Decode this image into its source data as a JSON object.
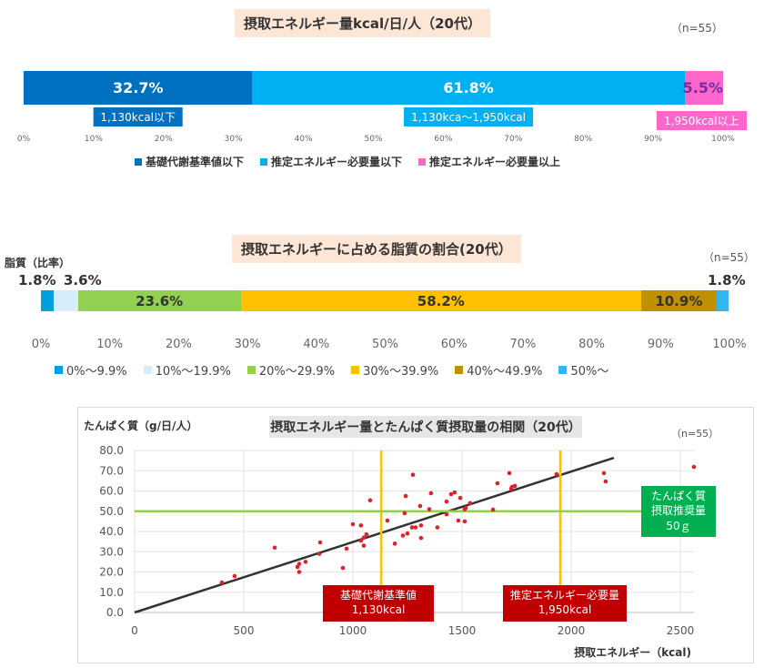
{
  "chart_data": [
    {
      "type": "bar",
      "stacked": "horizontal-100",
      "title": "摂取エネルギー量kcal/日/人（20代）",
      "n_label": "（n=55）",
      "series": [
        {
          "name": "基礎代謝基準値以下",
          "value": 32.7,
          "label": "32.7%",
          "range_label": "1,130kcal以下",
          "color": "#0070c0"
        },
        {
          "name": "推定エネルギー必要量以下",
          "value": 61.8,
          "label": "61.8%",
          "range_label": "1,130kca～1,950kcal",
          "color": "#00b0f0"
        },
        {
          "name": "推定エネルギー必要量以上",
          "value": 5.5,
          "label": "5.5%",
          "range_label": "1,950kcal以上",
          "color": "#ff66cc"
        }
      ],
      "xticks": [
        "0%",
        "10%",
        "20%",
        "30%",
        "40%",
        "50%",
        "60%",
        "70%",
        "80%",
        "90%",
        "100%"
      ],
      "xlim": [
        0,
        100
      ]
    },
    {
      "type": "bar",
      "stacked": "horizontal-100",
      "title": "摂取エネルギーに占める脂質の割合(20代）",
      "n_label": "（n=55）",
      "ylabel": "脂質（比率）",
      "series": [
        {
          "name": "0%～9.9%",
          "value": 1.8,
          "label": "1.8%",
          "color": "#00a0e0"
        },
        {
          "name": "10%～19.9%",
          "value": 3.6,
          "label": "3.6%",
          "color": "#d6eefc"
        },
        {
          "name": "20%～29.9%",
          "value": 23.6,
          "label": "23.6%",
          "color": "#92d050"
        },
        {
          "name": "30%～39.9%",
          "value": 58.2,
          "label": "58.2%",
          "color": "#ffc000"
        },
        {
          "name": "40%～49.9%",
          "value": 10.9,
          "label": "10.9%",
          "color": "#bf9000"
        },
        {
          "name": "50%～",
          "value": 1.8,
          "label": "1.8%",
          "color": "#33b5f0"
        }
      ],
      "xticks": [
        "0%",
        "10%",
        "20%",
        "30%",
        "40%",
        "50%",
        "60%",
        "70%",
        "80%",
        "90%",
        "100%"
      ],
      "xlim": [
        0,
        100
      ]
    },
    {
      "type": "scatter",
      "title": "摂取エネルギー量とたんぱく質摂取量の相関（20代）",
      "n_label": "（n=55）",
      "xlabel": "摂取エネルギー（kcal)",
      "ylabel": "たんぱく質（g/日/人）",
      "xlim": [
        0,
        2500
      ],
      "ylim": [
        0,
        80
      ],
      "xticks": [
        "0",
        "500",
        "1000",
        "1500",
        "2000",
        "2500"
      ],
      "yticks": [
        "0.0",
        "10.0",
        "20.0",
        "30.0",
        "40.0",
        "50.0",
        "60.0",
        "70.0",
        "80.0"
      ],
      "point_color": "#e0202a",
      "grid": true,
      "points": [
        [
          400,
          14.8
        ],
        [
          458,
          18
        ],
        [
          642,
          32
        ],
        [
          746,
          22.5
        ],
        [
          754,
          24
        ],
        [
          754,
          20
        ],
        [
          783,
          25
        ],
        [
          850,
          34.6
        ],
        [
          846,
          29
        ],
        [
          954,
          22
        ],
        [
          971,
          31.5
        ],
        [
          1000,
          43.6
        ],
        [
          1037,
          43
        ],
        [
          1037,
          35.5
        ],
        [
          1050,
          33
        ],
        [
          1050,
          37
        ],
        [
          1062,
          38.6
        ],
        [
          1079,
          55.4
        ],
        [
          1158,
          45.4
        ],
        [
          1192,
          34
        ],
        [
          1229,
          38
        ],
        [
          1250,
          39
        ],
        [
          1237,
          49
        ],
        [
          1242,
          57.5
        ],
        [
          1275,
          68
        ],
        [
          1271,
          42
        ],
        [
          1287,
          42
        ],
        [
          1308,
          52.6
        ],
        [
          1312,
          43
        ],
        [
          1312,
          36.8
        ],
        [
          1350,
          51
        ],
        [
          1358,
          58.9
        ],
        [
          1387,
          42
        ],
        [
          1429,
          54.8
        ],
        [
          1429,
          48.5
        ],
        [
          1450,
          58.4
        ],
        [
          1466,
          59.3
        ],
        [
          1492,
          56.6
        ],
        [
          1483,
          45.4
        ],
        [
          1512,
          45
        ],
        [
          1512,
          51
        ],
        [
          1517,
          51.7
        ],
        [
          1537,
          54
        ],
        [
          1642,
          50.8
        ],
        [
          1662,
          63.8
        ],
        [
          1717,
          68.8
        ],
        [
          1725,
          61.1
        ],
        [
          1729,
          62
        ],
        [
          1742,
          62.5
        ],
        [
          1933,
          68.3
        ],
        [
          2150,
          68.8
        ],
        [
          2158,
          64.7
        ],
        [
          2562,
          71.9
        ]
      ],
      "trendline": {
        "from": [
          0,
          0
        ],
        "to": [
          2196,
          76.4
        ],
        "color": "#333333"
      },
      "reference_lines": [
        {
          "axis": "x",
          "value": 1130,
          "color": "#ffc000",
          "label_line1": "基礎代謝基準値",
          "label_line2": "1,130kcal",
          "label_color": "#c00000"
        },
        {
          "axis": "x",
          "value": 1950,
          "color": "#ffc000",
          "label_line1": "推定エネルギー必要量",
          "label_line2": "1,950kcal",
          "label_color": "#c00000"
        },
        {
          "axis": "y",
          "value": 50,
          "color": "#92d050",
          "label_line1": "たんぱく質",
          "label_line2": "摂取推奨量",
          "label_line3": "50ｇ",
          "label_color": "#00b050"
        }
      ]
    }
  ]
}
